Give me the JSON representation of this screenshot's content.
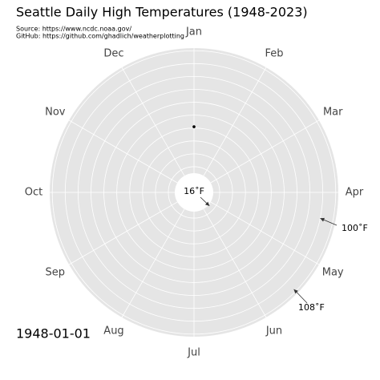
{
  "chart_data": {
    "type": "polar",
    "title": "Seattle Daily High Temperatures (1948-2023)",
    "source": "Source: https://www.ncdc.noaa.gov/",
    "github": "GitHub: https://github.com/ghadlich/weatherplotting",
    "date_label": "1948-01-01",
    "categories": [
      "Jan",
      "Feb",
      "Mar",
      "Apr",
      "May",
      "Jun",
      "Jul",
      "Aug",
      "Sep",
      "Oct",
      "Nov",
      "Dec"
    ],
    "x": [
      1
    ],
    "values": [
      51
    ],
    "color": "#000000",
    "xlim": [
      1,
      366
    ],
    "ylim": [
      15,
      112
    ],
    "yticks": [
      20,
      30,
      40,
      50,
      60,
      70,
      80,
      90,
      100,
      110
    ],
    "grid": true,
    "annotations": [
      {
        "text": "16˚F",
        "value": 16,
        "x": 134
      },
      {
        "text": "100˚F",
        "value": 100,
        "x": 104
      },
      {
        "text": "108˚F",
        "value": 108,
        "x": 137
      }
    ]
  }
}
